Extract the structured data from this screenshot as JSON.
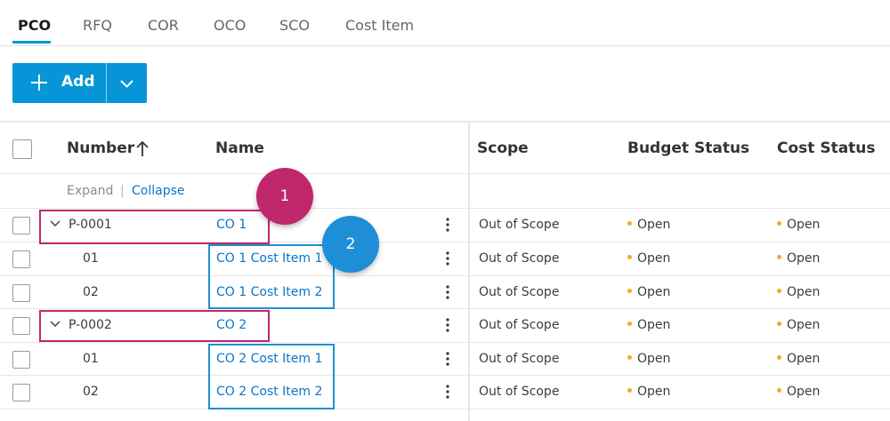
{
  "tabs": [
    "PCO",
    "RFQ",
    "COR",
    "OCO",
    "SCO",
    "Cost Item"
  ],
  "add_button": {
    "label": "Add",
    "icon": "plus-icon",
    "dropdown_icon": "chevron-down-icon"
  },
  "columns": {
    "number": "Number",
    "name": "Name",
    "scope": "Scope",
    "budget_status": "Budget Status",
    "cost_status": "Cost Status"
  },
  "sort": {
    "column": "Number",
    "direction": "ascending",
    "icon": "arrow-up-icon"
  },
  "expand_collapse": {
    "expand": "Expand",
    "separator": "|",
    "collapse": "Collapse"
  },
  "rows": [
    {
      "number": "P-0001",
      "name": "CO 1",
      "scope": "Out of Scope",
      "budget_status": "Open",
      "cost_status": "Open",
      "is_parent": true
    },
    {
      "number": "01",
      "name": "CO 1 Cost Item 1",
      "scope": "Out of Scope",
      "budget_status": "Open",
      "cost_status": "Open",
      "is_parent": false
    },
    {
      "number": "02",
      "name": "CO 1 Cost Item 2",
      "scope": "Out of Scope",
      "budget_status": "Open",
      "cost_status": "Open",
      "is_parent": false
    },
    {
      "number": "P-0002",
      "name": "CO 2",
      "scope": "Out of Scope",
      "budget_status": "Open",
      "cost_status": "Open",
      "is_parent": true
    },
    {
      "number": "01",
      "name": "CO 2 Cost Item 1",
      "scope": "Out of Scope",
      "budget_status": "Open",
      "cost_status": "Open",
      "is_parent": false
    },
    {
      "number": "02",
      "name": "CO 2 Cost Item 2",
      "scope": "Out of Scope",
      "budget_status": "Open",
      "cost_status": "Open",
      "is_parent": false
    }
  ],
  "annotations": {
    "badge_1": "1",
    "badge_2": "2"
  },
  "colors": {
    "accent": "#0696d7",
    "link": "#0b75c5",
    "status_dot": "#f7a826",
    "annotation_pink": "#c0276c",
    "annotation_blue": "#1e8fd6"
  }
}
